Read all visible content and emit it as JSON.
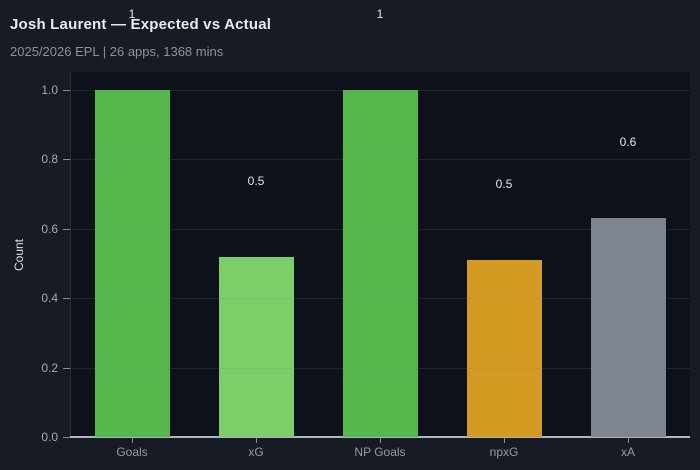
{
  "header": {
    "title": "Josh Laurent — Expected vs Actual",
    "subtitle": "2025/2026 EPL | 26 apps, 1368 mins"
  },
  "chart_data": {
    "type": "bar",
    "title": "Josh Laurent — Expected vs Actual",
    "subtitle": "2025/2026 EPL | 26 apps, 1368 mins",
    "categories": [
      "Goals",
      "xG",
      "NP Goals",
      "npxG",
      "xA"
    ],
    "values": [
      1,
      0.52,
      1,
      0.51,
      0.63
    ],
    "value_labels": [
      "1",
      "0.5",
      "1",
      "0.5",
      "0.6"
    ],
    "bar_colors": [
      "#55b84c",
      "#7cce68",
      "#55b84c",
      "#d49a21",
      "#7e8490"
    ],
    "xlabel": "",
    "ylabel": "Count",
    "ylim": [
      0,
      1.0
    ],
    "yticks": [
      "0.0",
      "0.2",
      "0.4",
      "0.6",
      "0.8",
      "1.0"
    ],
    "grid": true,
    "legend": false,
    "colors": {
      "paper_bg": "#171b23",
      "plot_bg": "#0d111a",
      "title": "#e9ebee",
      "subtitle": "#8b929b",
      "axis_line": "#b0b6bf",
      "left_spine": "#2b303a",
      "tick_mark": "#878d96",
      "y_tick_label": "#a4aab3",
      "x_tick_label": "#949ba5",
      "y_axis_title": "#dde0e4",
      "value_label": "#e3e6e9",
      "gridline": "rgba(125,135,150,0.18)"
    }
  }
}
